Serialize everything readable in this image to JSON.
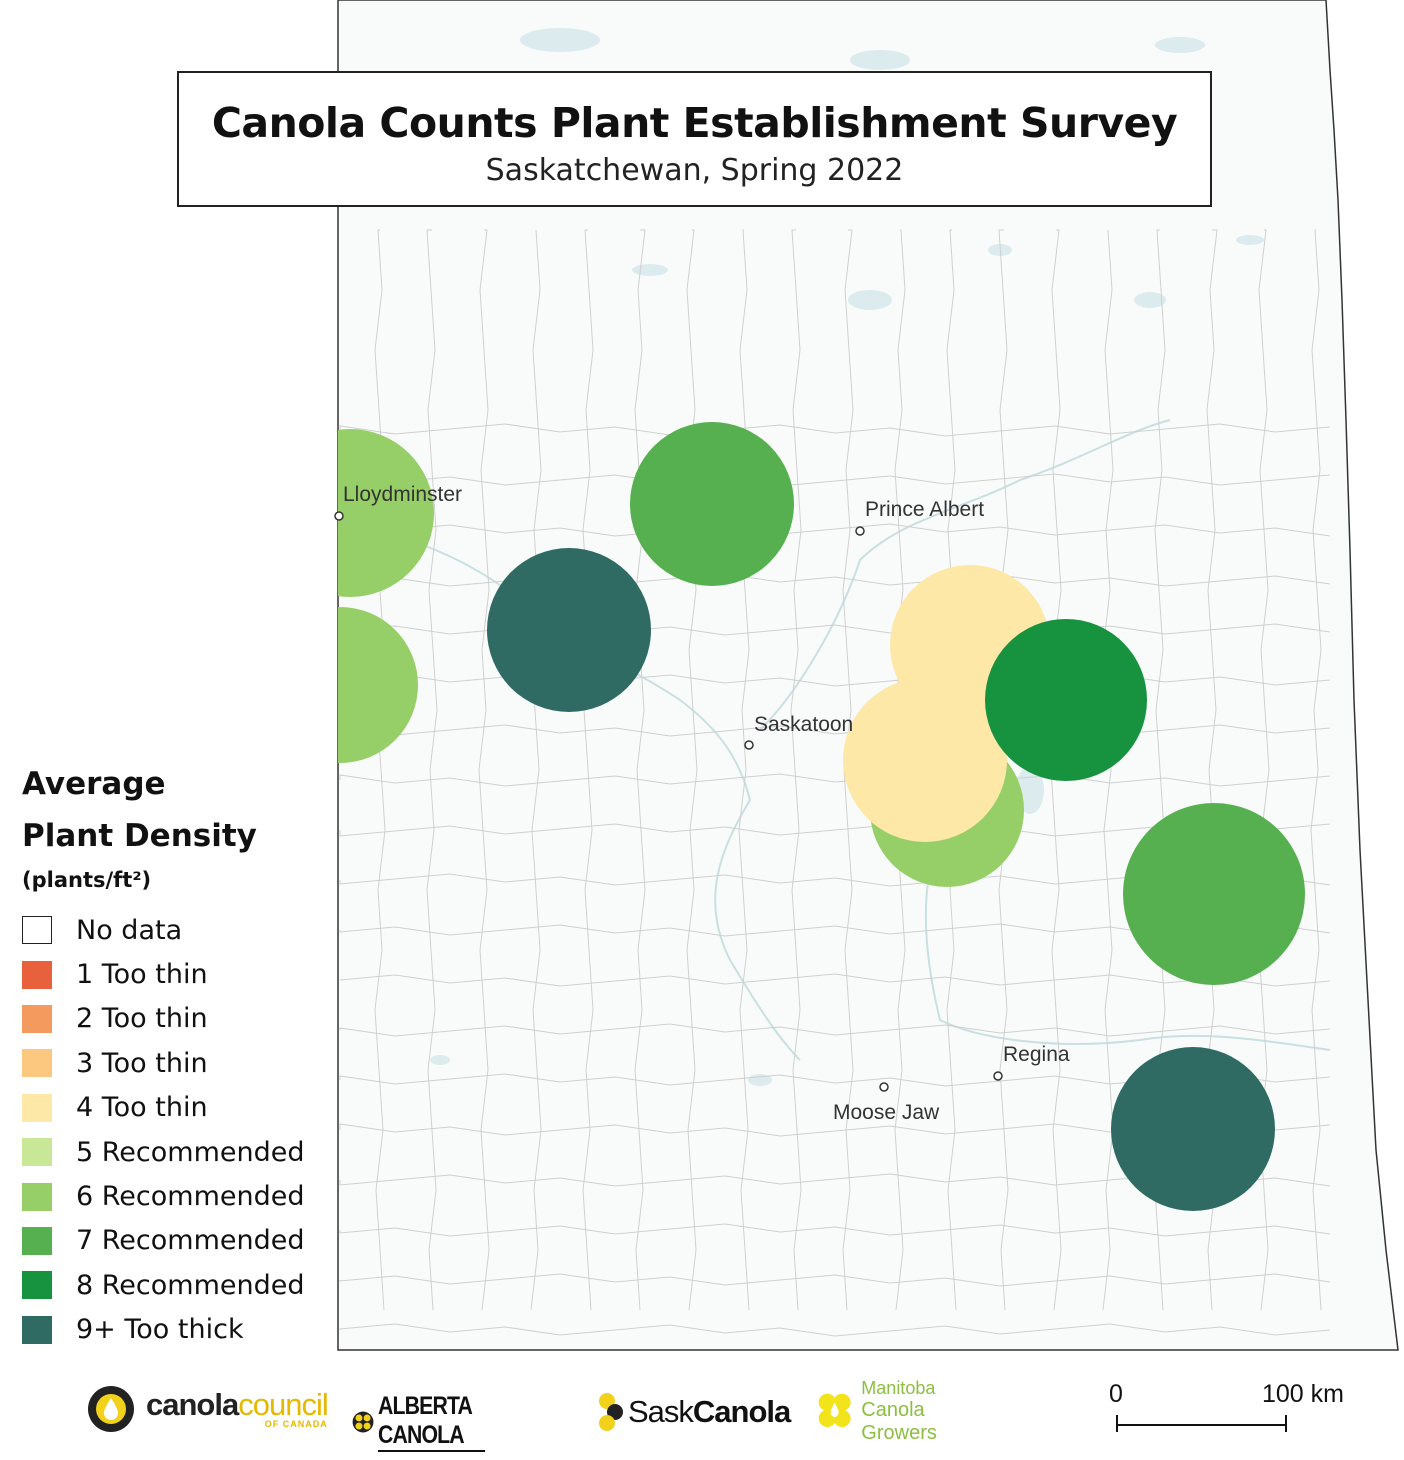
{
  "title": "Canola Counts Plant Establishment Survey",
  "subtitle": "Saskatchewan, Spring 2022",
  "legend": {
    "title_line1": "Average",
    "title_line2": "Plant Density",
    "unit": "(plants/ft²)",
    "items": [
      {
        "label": "No data",
        "color": "#ffffff"
      },
      {
        "label": "1 Too thin",
        "color": "#e8603c"
      },
      {
        "label": "2 Too thin",
        "color": "#f59a5e"
      },
      {
        "label": "3 Too thin",
        "color": "#fcc77f"
      },
      {
        "label": "4 Too thin",
        "color": "#fde8a8"
      },
      {
        "label": "5 Recommended",
        "color": "#c8e897"
      },
      {
        "label": "6 Recommended",
        "color": "#96cf68"
      },
      {
        "label": "7 Recommended",
        "color": "#56b04f"
      },
      {
        "label": "8 Recommended",
        "color": "#17933f"
      },
      {
        "label": "9+ Too thick",
        "color": "#2f6b63"
      }
    ]
  },
  "cities": [
    {
      "name": "Lloydminster"
    },
    {
      "name": "Prince Albert"
    },
    {
      "name": "Saskatoon"
    },
    {
      "name": "Regina"
    },
    {
      "name": "Moose Jaw"
    }
  ],
  "survey_circles": [
    {
      "density_class": "6 Recommended",
      "color": "#96cf68"
    },
    {
      "density_class": "6 Recommended",
      "color": "#96cf68"
    },
    {
      "density_class": "7 Recommended",
      "color": "#56b04f"
    },
    {
      "density_class": "9+ Too thick",
      "color": "#2f6b63"
    },
    {
      "density_class": "4 Too thin",
      "color": "#fde8a8"
    },
    {
      "density_class": "4 Too thin",
      "color": "#fde8a8"
    },
    {
      "density_class": "8 Recommended",
      "color": "#17933f"
    },
    {
      "density_class": "6 Recommended",
      "color": "#96cf68"
    },
    {
      "density_class": "7 Recommended",
      "color": "#56b04f"
    },
    {
      "density_class": "9+ Too thick",
      "color": "#2f6b63"
    }
  ],
  "logos": {
    "canola_council_main1": "canola",
    "canola_council_main2": "council",
    "canola_council_sub": "OF CANADA",
    "alberta_canola": "ALBERTA CANOLA",
    "sask_canola_1": "Sask",
    "sask_canola_2": "Canola",
    "manitoba_line1": "Manitoba",
    "manitoba_line2": "Canola Growers"
  },
  "scale_bar": {
    "start_label": "0",
    "end_label": "100 km"
  }
}
